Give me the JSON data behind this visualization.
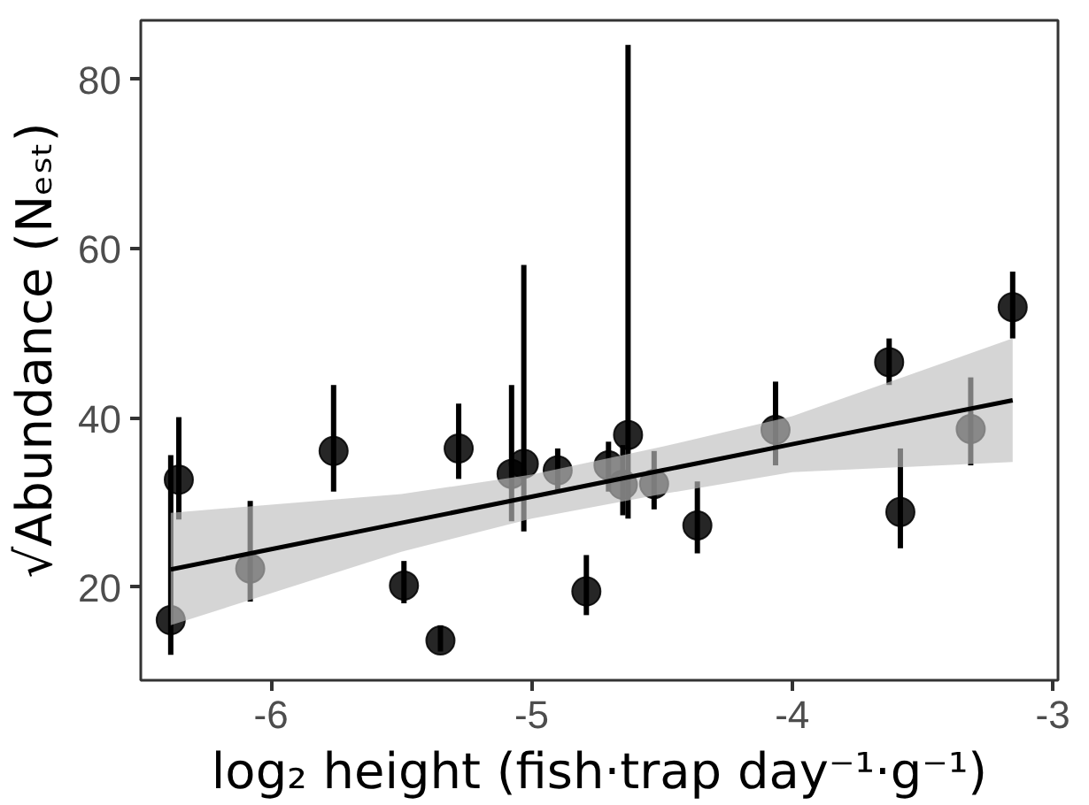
{
  "chart_data": {
    "type": "scatter",
    "xlabel": "log₂ height (fish·trap day⁻¹·g⁻¹)",
    "ylabel": "√Abundance (Nₑₛₜ)",
    "xlim": [
      -6.5,
      -2.98
    ],
    "ylim": [
      9,
      87
    ],
    "xticks": [
      -6,
      -5,
      -4,
      -3
    ],
    "yticks": [
      20,
      40,
      60,
      80
    ],
    "grid": false,
    "series": [
      {
        "color": "#000000",
        "marker": "circle",
        "x": [
          -6.385,
          -6.354,
          -6.08,
          -5.76,
          -5.49,
          -5.35,
          -5.28,
          -5.077,
          -5.03,
          -4.9,
          -4.79,
          -4.705,
          -4.65,
          -4.63,
          -4.53,
          -4.364,
          -4.064,
          -3.628,
          -3.585,
          -3.315,
          -3.154
        ],
        "values": [
          16.1,
          32.7,
          22.2,
          36.1,
          20.2,
          13.7,
          36.4,
          33.4,
          34.6,
          33.8,
          19.5,
          34.4,
          32.1,
          38.0,
          32.2,
          27.3,
          38.6,
          46.6,
          28.9,
          38.7,
          53.1
        ],
        "errors": [
          [
            12.0,
            35.6
          ],
          [
            28.0,
            40.1
          ],
          [
            18.3,
            30.2
          ],
          [
            31.3,
            43.9
          ],
          [
            18.1,
            23.1
          ],
          [
            12.4,
            15.5
          ],
          [
            32.8,
            41.7
          ],
          [
            27.8,
            43.9
          ],
          [
            26.6,
            58.1
          ],
          [
            31.3,
            36.4
          ],
          [
            16.7,
            23.8
          ],
          [
            31.3,
            37.2
          ],
          [
            28.5,
            36.8
          ],
          [
            28.1,
            84.1
          ],
          [
            29.2,
            36.1
          ],
          [
            24.0,
            32.5
          ],
          [
            34.4,
            44.3
          ],
          [
            43.9,
            49.4
          ],
          [
            24.6,
            36.4
          ],
          [
            34.4,
            44.8
          ],
          [
            49.4,
            57.3
          ]
        ]
      },
      {
        "type": "line",
        "color": "#000000",
        "line_style": "solid",
        "x": [
          -6.385,
          -5.5,
          -5.0,
          -4.5,
          -4.0,
          -3.154
        ],
        "values": [
          22.1,
          27.6,
          30.7,
          33.8,
          36.9,
          42.1
        ],
        "lower": [
          15.5,
          24.2,
          28.1,
          31.0,
          33.6,
          34.8
        ],
        "upper": [
          28.8,
          31.0,
          33.3,
          36.6,
          40.2,
          49.4
        ]
      }
    ]
  }
}
